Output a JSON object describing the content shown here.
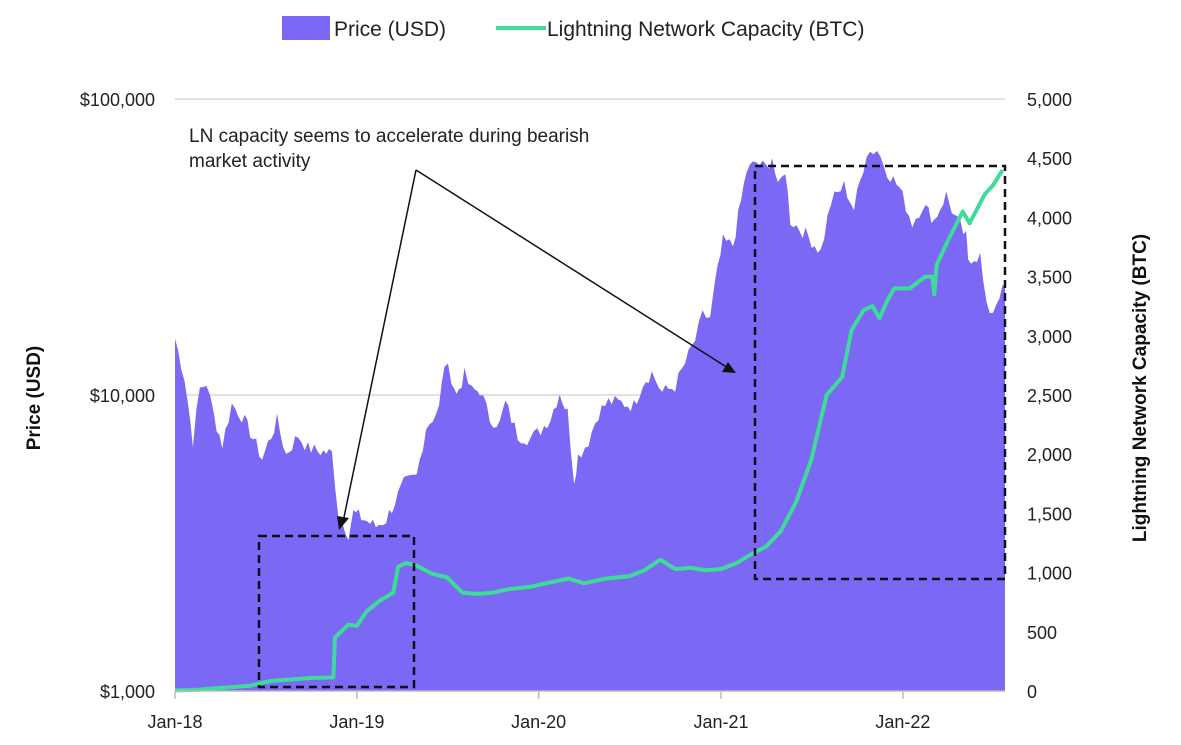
{
  "chart_data": {
    "type": "area",
    "x_unit": "date",
    "x_ticks": [
      "Jan-18",
      "Jan-19",
      "Jan-20",
      "Jan-21",
      "Jan-22"
    ],
    "x_range": [
      "2018-01",
      "2022-07"
    ],
    "left_axis": {
      "label": "Price (USD)",
      "scale": "log",
      "range": [
        1000,
        100000
      ],
      "ticks": [
        "$1,000",
        "$10,000",
        "$100,000"
      ]
    },
    "right_axis": {
      "label": "Lightning Network Capacity (BTC)",
      "scale": "linear",
      "range": [
        0,
        5000
      ],
      "ticks": [
        "0",
        "500",
        "1,000",
        "1,500",
        "2,000",
        "2,500",
        "3,000",
        "3,500",
        "4,000",
        "4,500",
        "5,000"
      ]
    },
    "legend_position": "top-center",
    "grid": "horizontal",
    "series": [
      {
        "name": "Price (USD)",
        "kind": "area",
        "axis": "left",
        "color": "#7B68F5",
        "points": [
          [
            "2018-01-01",
            15500
          ],
          [
            "2018-01-20",
            11500
          ],
          [
            "2018-02-06",
            7000
          ],
          [
            "2018-02-20",
            10500
          ],
          [
            "2018-03-05",
            11000
          ],
          [
            "2018-03-20",
            8500
          ],
          [
            "2018-04-06",
            6800
          ],
          [
            "2018-04-25",
            9300
          ],
          [
            "2018-05-15",
            8500
          ],
          [
            "2018-06-01",
            7500
          ],
          [
            "2018-06-25",
            6100
          ],
          [
            "2018-07-25",
            8200
          ],
          [
            "2018-08-12",
            6300
          ],
          [
            "2018-09-05",
            7300
          ],
          [
            "2018-09-25",
            6600
          ],
          [
            "2018-10-20",
            6450
          ],
          [
            "2018-11-12",
            6350
          ],
          [
            "2018-11-25",
            4000
          ],
          [
            "2018-12-15",
            3400
          ],
          [
            "2018-12-25",
            4000
          ],
          [
            "2019-01-10",
            3850
          ],
          [
            "2019-02-08",
            3600
          ],
          [
            "2019-03-01",
            3800
          ],
          [
            "2019-04-05",
            5000
          ],
          [
            "2019-05-01",
            5300
          ],
          [
            "2019-05-20",
            7800
          ],
          [
            "2019-06-15",
            9000
          ],
          [
            "2019-06-26",
            12800
          ],
          [
            "2019-07-10",
            11500
          ],
          [
            "2019-07-20",
            10000
          ],
          [
            "2019-08-05",
            11700
          ],
          [
            "2019-08-20",
            10300
          ],
          [
            "2019-09-05",
            10400
          ],
          [
            "2019-09-25",
            8300
          ],
          [
            "2019-10-15",
            8000
          ],
          [
            "2019-10-26",
            9400
          ],
          [
            "2019-11-20",
            7300
          ],
          [
            "2019-12-15",
            7100
          ],
          [
            "2020-01-05",
            7600
          ],
          [
            "2020-01-25",
            8400
          ],
          [
            "2020-02-12",
            10200
          ],
          [
            "2020-02-28",
            8700
          ],
          [
            "2020-03-12",
            5200
          ],
          [
            "2020-03-20",
            6200
          ],
          [
            "2020-04-10",
            7000
          ],
          [
            "2020-04-30",
            8700
          ],
          [
            "2020-05-20",
            9500
          ],
          [
            "2020-06-15",
            9400
          ],
          [
            "2020-07-10",
            9200
          ],
          [
            "2020-07-28",
            11000
          ],
          [
            "2020-08-15",
            11900
          ],
          [
            "2020-09-05",
            10200
          ],
          [
            "2020-10-01",
            10700
          ],
          [
            "2020-10-21",
            12800
          ],
          [
            "2020-11-10",
            15300
          ],
          [
            "2020-11-25",
            18500
          ],
          [
            "2020-12-10",
            18300
          ],
          [
            "2020-12-20",
            23500
          ],
          [
            "2021-01-05",
            33000
          ],
          [
            "2021-01-25",
            32000
          ],
          [
            "2021-02-10",
            45000
          ],
          [
            "2021-02-21",
            57000
          ],
          [
            "2021-03-13",
            61000
          ],
          [
            "2021-04-01",
            58500
          ],
          [
            "2021-04-14",
            64000
          ],
          [
            "2021-04-25",
            49500
          ],
          [
            "2021-05-10",
            58000
          ],
          [
            "2021-05-20",
            39000
          ],
          [
            "2021-06-20",
            35000
          ],
          [
            "2021-07-20",
            30500
          ],
          [
            "2021-08-10",
            45000
          ],
          [
            "2021-09-05",
            51000
          ],
          [
            "2021-09-25",
            42500
          ],
          [
            "2021-10-20",
            66000
          ],
          [
            "2021-11-10",
            67500
          ],
          [
            "2021-12-01",
            57000
          ],
          [
            "2021-12-25",
            50000
          ],
          [
            "2022-01-20",
            38000
          ],
          [
            "2022-02-10",
            44000
          ],
          [
            "2022-03-05",
            39000
          ],
          [
            "2022-03-29",
            47500
          ],
          [
            "2022-04-15",
            40000
          ],
          [
            "2022-05-08",
            34000
          ],
          [
            "2022-05-12",
            29000
          ],
          [
            "2022-06-05",
            29500
          ],
          [
            "2022-06-18",
            19500
          ],
          [
            "2022-07-01",
            19300
          ],
          [
            "2022-07-20",
            23500
          ]
        ]
      },
      {
        "name": "Lightning Network Capacity (BTC)",
        "kind": "line",
        "axis": "right",
        "color": "#3DDC97",
        "points": [
          [
            "2018-01-01",
            5
          ],
          [
            "2018-02-15",
            10
          ],
          [
            "2018-04-01",
            25
          ],
          [
            "2018-06-01",
            45
          ],
          [
            "2018-07-01",
            75
          ],
          [
            "2018-07-15",
            85
          ],
          [
            "2018-08-15",
            95
          ],
          [
            "2018-10-01",
            110
          ],
          [
            "2018-11-15",
            115
          ],
          [
            "2018-11-18",
            450
          ],
          [
            "2018-12-15",
            560
          ],
          [
            "2019-01-01",
            550
          ],
          [
            "2019-01-20",
            670
          ],
          [
            "2019-02-15",
            760
          ],
          [
            "2019-03-15",
            830
          ],
          [
            "2019-03-25",
            1050
          ],
          [
            "2019-04-10",
            1080
          ],
          [
            "2019-05-01",
            1060
          ],
          [
            "2019-06-01",
            990
          ],
          [
            "2019-07-01",
            960
          ],
          [
            "2019-08-01",
            830
          ],
          [
            "2019-09-01",
            820
          ],
          [
            "2019-10-01",
            830
          ],
          [
            "2019-11-01",
            860
          ],
          [
            "2019-12-15",
            880
          ],
          [
            "2020-01-15",
            910
          ],
          [
            "2020-03-01",
            950
          ],
          [
            "2020-04-01",
            910
          ],
          [
            "2020-05-15",
            950
          ],
          [
            "2020-07-01",
            970
          ],
          [
            "2020-08-01",
            1020
          ],
          [
            "2020-09-01",
            1110
          ],
          [
            "2020-10-01",
            1030
          ],
          [
            "2020-11-01",
            1040
          ],
          [
            "2020-12-01",
            1020
          ],
          [
            "2021-01-01",
            1030
          ],
          [
            "2021-02-01",
            1080
          ],
          [
            "2021-03-01",
            1150
          ],
          [
            "2021-04-01",
            1220
          ],
          [
            "2021-05-01",
            1350
          ],
          [
            "2021-06-01",
            1600
          ],
          [
            "2021-07-01",
            1950
          ],
          [
            "2021-08-01",
            2500
          ],
          [
            "2021-09-01",
            2650
          ],
          [
            "2021-09-20",
            3050
          ],
          [
            "2021-10-15",
            3220
          ],
          [
            "2021-11-01",
            3250
          ],
          [
            "2021-11-15",
            3150
          ],
          [
            "2021-12-01",
            3300
          ],
          [
            "2021-12-15",
            3400
          ],
          [
            "2022-01-15",
            3400
          ],
          [
            "2022-02-15",
            3500
          ],
          [
            "2022-03-01",
            3500
          ],
          [
            "2022-03-05",
            3350
          ],
          [
            "2022-03-10",
            3600
          ],
          [
            "2022-04-01",
            3800
          ],
          [
            "2022-05-01",
            4050
          ],
          [
            "2022-05-15",
            3950
          ],
          [
            "2022-06-15",
            4200
          ],
          [
            "2022-07-01",
            4270
          ],
          [
            "2022-07-20",
            4400
          ]
        ]
      }
    ],
    "annotation": {
      "text_lines": [
        "LN capacity seems to accelerate during bearish",
        "market activity"
      ]
    }
  }
}
